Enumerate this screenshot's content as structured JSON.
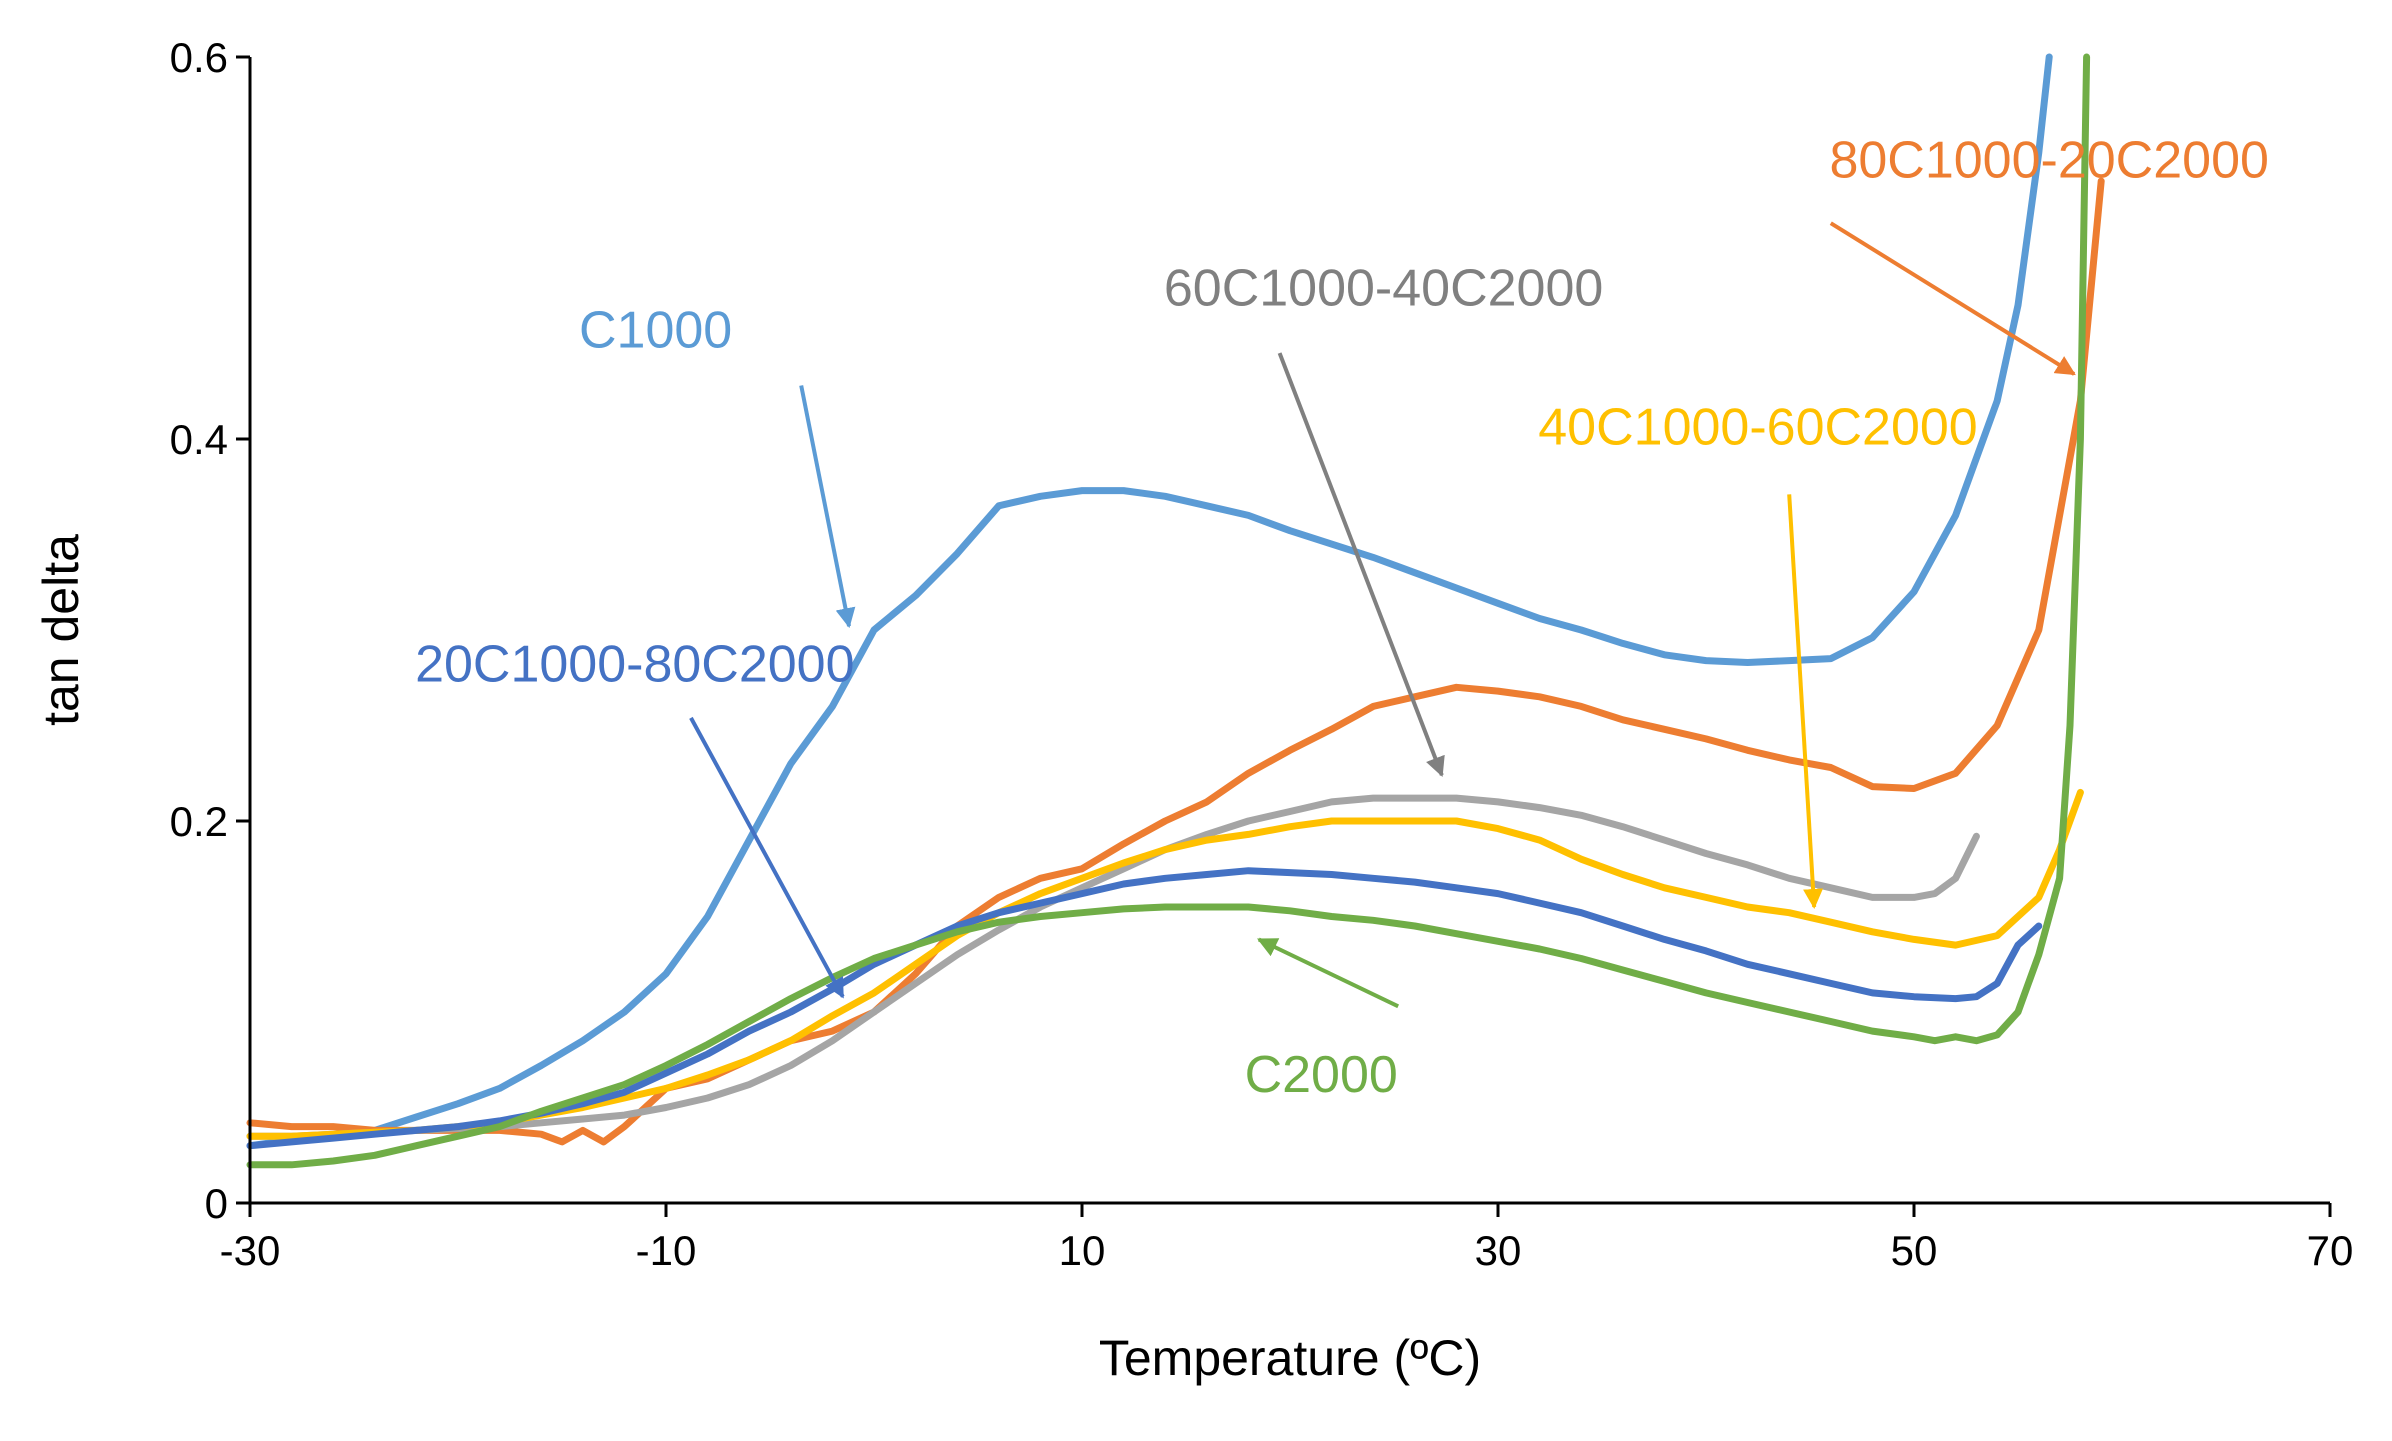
{
  "chart_data": {
    "type": "line",
    "title": "",
    "xlabel": "Temperature  (ºC)",
    "ylabel": "tan delta",
    "xlim": [
      -30,
      70
    ],
    "ylim": [
      0,
      0.6
    ],
    "xticks": [
      -30,
      -10,
      10,
      30,
      50,
      70
    ],
    "yticks": [
      0,
      0.2,
      0.4,
      0.6
    ],
    "xtick_labels": [
      "-30",
      "-10",
      "10",
      "30",
      "50",
      "70"
    ],
    "ytick_labels": [
      "0",
      "0.2",
      "0.4",
      "0.6"
    ],
    "grid": false,
    "legend": "inline annotations with arrows",
    "series": [
      {
        "name": "C1000",
        "color": "#5B9BD5",
        "x": [
          -30,
          -28,
          -26,
          -24,
          -22,
          -20,
          -18,
          -16,
          -14,
          -12,
          -10,
          -8,
          -6,
          -4,
          -2,
          0,
          2,
          4,
          6,
          8,
          10,
          12,
          14,
          16,
          18,
          20,
          22,
          24,
          26,
          28,
          30,
          32,
          34,
          36,
          38,
          40,
          42,
          44,
          46,
          48,
          50,
          52,
          54,
          55,
          56,
          56.5
        ],
        "y": [
          0.03,
          0.033,
          0.035,
          0.038,
          0.045,
          0.052,
          0.06,
          0.072,
          0.085,
          0.1,
          0.12,
          0.15,
          0.19,
          0.23,
          0.26,
          0.3,
          0.318,
          0.34,
          0.365,
          0.37,
          0.373,
          0.373,
          0.37,
          0.365,
          0.36,
          0.352,
          0.345,
          0.338,
          0.33,
          0.322,
          0.314,
          0.306,
          0.3,
          0.293,
          0.287,
          0.284,
          0.283,
          0.284,
          0.285,
          0.296,
          0.32,
          0.36,
          0.42,
          0.47,
          0.55,
          0.6
        ]
      },
      {
        "name": "80C1000-20C2000",
        "color": "#ED7D31",
        "x": [
          -30,
          -28,
          -26,
          -24,
          -22,
          -20,
          -18,
          -16,
          -15,
          -14,
          -13,
          -12,
          -10,
          -8,
          -6,
          -4,
          -2,
          0,
          2,
          4,
          6,
          8,
          10,
          12,
          14,
          16,
          18,
          20,
          22,
          24,
          26,
          28,
          30,
          32,
          34,
          36,
          38,
          40,
          42,
          44,
          46,
          48,
          50,
          52,
          54,
          56,
          58,
          59
        ],
        "y": [
          0.042,
          0.04,
          0.04,
          0.038,
          0.038,
          0.038,
          0.038,
          0.036,
          0.032,
          0.038,
          0.032,
          0.04,
          0.06,
          0.065,
          0.075,
          0.085,
          0.09,
          0.1,
          0.12,
          0.145,
          0.16,
          0.17,
          0.175,
          0.188,
          0.2,
          0.21,
          0.225,
          0.237,
          0.248,
          0.26,
          0.265,
          0.27,
          0.268,
          0.265,
          0.26,
          0.253,
          0.248,
          0.243,
          0.237,
          0.232,
          0.228,
          0.218,
          0.217,
          0.225,
          0.25,
          0.3,
          0.42,
          0.535
        ]
      },
      {
        "name": "60C1000-40C2000",
        "color": "#A5A5A5",
        "x": [
          -30,
          -28,
          -26,
          -24,
          -22,
          -20,
          -18,
          -16,
          -14,
          -12,
          -10,
          -8,
          -6,
          -4,
          -2,
          0,
          2,
          4,
          6,
          8,
          10,
          12,
          14,
          16,
          18,
          20,
          22,
          24,
          26,
          28,
          30,
          32,
          34,
          36,
          38,
          40,
          42,
          44,
          46,
          48,
          50,
          51,
          52,
          53
        ],
        "y": [
          0.035,
          0.035,
          0.036,
          0.037,
          0.038,
          0.039,
          0.04,
          0.042,
          0.044,
          0.046,
          0.05,
          0.055,
          0.062,
          0.072,
          0.085,
          0.1,
          0.115,
          0.13,
          0.143,
          0.155,
          0.165,
          0.175,
          0.185,
          0.193,
          0.2,
          0.205,
          0.21,
          0.212,
          0.212,
          0.212,
          0.21,
          0.207,
          0.203,
          0.197,
          0.19,
          0.183,
          0.177,
          0.17,
          0.165,
          0.16,
          0.16,
          0.162,
          0.17,
          0.192
        ]
      },
      {
        "name": "40C1000-60C2000",
        "color": "#FFC000",
        "x": [
          -30,
          -28,
          -26,
          -24,
          -22,
          -20,
          -18,
          -16,
          -14,
          -12,
          -10,
          -8,
          -6,
          -4,
          -2,
          0,
          2,
          4,
          6,
          8,
          10,
          12,
          14,
          16,
          18,
          20,
          22,
          24,
          26,
          28,
          30,
          32,
          34,
          36,
          38,
          40,
          42,
          44,
          46,
          48,
          50,
          52,
          54,
          56,
          57,
          58
        ],
        "y": [
          0.035,
          0.035,
          0.036,
          0.037,
          0.038,
          0.04,
          0.042,
          0.046,
          0.05,
          0.055,
          0.06,
          0.067,
          0.075,
          0.085,
          0.098,
          0.11,
          0.125,
          0.14,
          0.152,
          0.162,
          0.17,
          0.178,
          0.185,
          0.19,
          0.193,
          0.197,
          0.2,
          0.2,
          0.2,
          0.2,
          0.196,
          0.19,
          0.18,
          0.172,
          0.165,
          0.16,
          0.155,
          0.152,
          0.147,
          0.142,
          0.138,
          0.135,
          0.14,
          0.16,
          0.185,
          0.215
        ]
      },
      {
        "name": "20C1000-80C2000",
        "color": "#4472C4",
        "x": [
          -30,
          -28,
          -26,
          -24,
          -22,
          -20,
          -18,
          -16,
          -14,
          -12,
          -10,
          -8,
          -6,
          -4,
          -2,
          0,
          2,
          4,
          6,
          8,
          10,
          12,
          14,
          16,
          18,
          20,
          22,
          24,
          26,
          28,
          30,
          32,
          34,
          36,
          38,
          40,
          42,
          44,
          46,
          48,
          50,
          52,
          53,
          54,
          55,
          56
        ],
        "y": [
          0.03,
          0.032,
          0.034,
          0.036,
          0.038,
          0.04,
          0.043,
          0.047,
          0.052,
          0.058,
          0.068,
          0.078,
          0.09,
          0.1,
          0.112,
          0.125,
          0.135,
          0.145,
          0.152,
          0.157,
          0.162,
          0.167,
          0.17,
          0.172,
          0.174,
          0.173,
          0.172,
          0.17,
          0.168,
          0.165,
          0.162,
          0.157,
          0.152,
          0.145,
          0.138,
          0.132,
          0.125,
          0.12,
          0.115,
          0.11,
          0.108,
          0.107,
          0.108,
          0.115,
          0.135,
          0.145
        ]
      },
      {
        "name": "C2000",
        "color": "#70AD47",
        "x": [
          -30,
          -28,
          -26,
          -24,
          -22,
          -20,
          -18,
          -16,
          -14,
          -12,
          -10,
          -8,
          -6,
          -4,
          -2,
          0,
          2,
          4,
          6,
          8,
          10,
          12,
          14,
          16,
          18,
          20,
          22,
          24,
          26,
          28,
          30,
          32,
          34,
          36,
          38,
          40,
          42,
          44,
          46,
          48,
          50,
          51,
          52,
          53,
          54,
          55,
          56,
          57,
          57.5,
          58,
          58.3
        ],
        "y": [
          0.02,
          0.02,
          0.022,
          0.025,
          0.03,
          0.035,
          0.04,
          0.048,
          0.055,
          0.062,
          0.072,
          0.083,
          0.095,
          0.107,
          0.118,
          0.128,
          0.135,
          0.142,
          0.147,
          0.15,
          0.152,
          0.154,
          0.155,
          0.155,
          0.155,
          0.153,
          0.15,
          0.148,
          0.145,
          0.141,
          0.137,
          0.133,
          0.128,
          0.122,
          0.116,
          0.11,
          0.105,
          0.1,
          0.095,
          0.09,
          0.087,
          0.085,
          0.087,
          0.085,
          0.088,
          0.1,
          0.13,
          0.17,
          0.25,
          0.4,
          0.6
        ]
      }
    ],
    "annotations": [
      {
        "text": "C1000",
        "color": "#5B9BD5",
        "label_at": [
          -10.5,
          0.448
        ],
        "arrow_from": [
          -3.5,
          0.428
        ],
        "arrow_to": [
          -1.2,
          0.302
        ]
      },
      {
        "text": "80C1000-20C2000",
        "color": "#ED7D31",
        "label_at": [
          56.5,
          0.537
        ],
        "arrow_from": [
          46,
          0.513
        ],
        "arrow_to": [
          57.7,
          0.434
        ]
      },
      {
        "text": "60C1000-40C2000",
        "color": "#808080",
        "label_at": [
          24.5,
          0.47
        ],
        "arrow_from": [
          19.5,
          0.445
        ],
        "arrow_to": [
          27.3,
          0.224
        ]
      },
      {
        "text": "40C1000-60C2000",
        "color": "#FFC000",
        "label_at": [
          42.5,
          0.397
        ],
        "arrow_from": [
          44,
          0.371
        ],
        "arrow_to": [
          45.2,
          0.155
        ]
      },
      {
        "text": "20C1000-80C2000",
        "color": "#4472C4",
        "label_at": [
          -11.5,
          0.273
        ],
        "arrow_from": [
          -8.8,
          0.254
        ],
        "arrow_to": [
          -1.5,
          0.108
        ]
      },
      {
        "text": "C2000",
        "color": "#70AD47",
        "label_at": [
          21.5,
          0.058
        ],
        "arrow_from": [
          25.2,
          0.103
        ],
        "arrow_to": [
          18.5,
          0.138
        ]
      }
    ]
  }
}
